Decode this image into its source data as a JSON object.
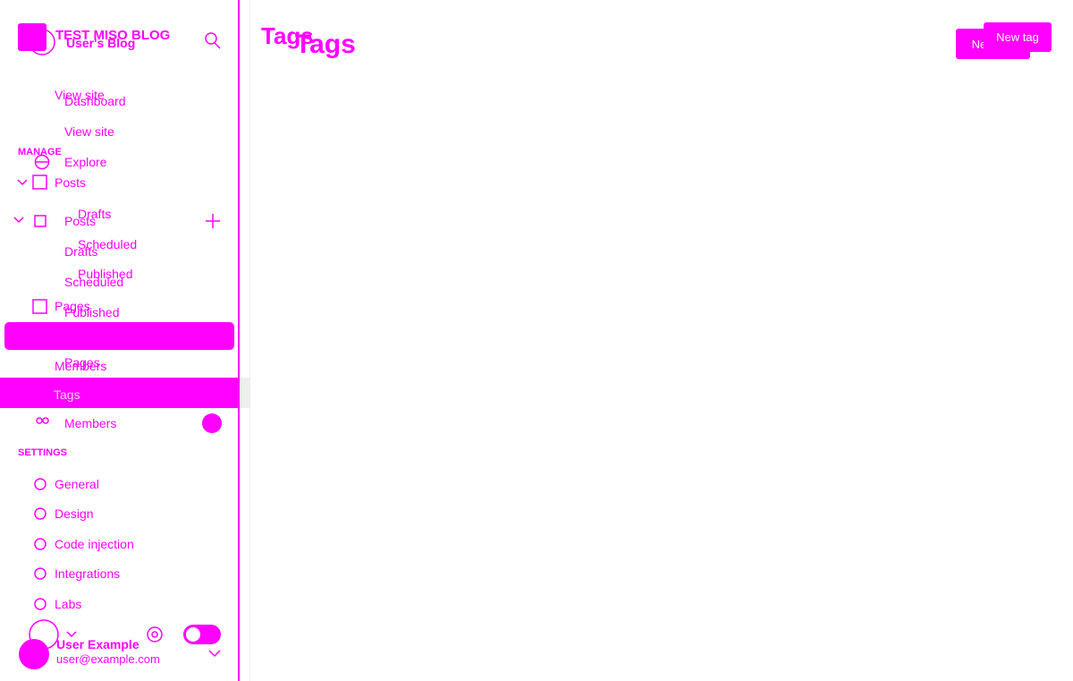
{
  "sidebar_a": {
    "blog_title": "TEST MISO BLOG",
    "view_site": "View site",
    "manage_heading": "MANAGE",
    "posts": "Posts",
    "drafts": "Drafts",
    "scheduled": "Scheduled",
    "published": "Published",
    "pages": "Pages",
    "members": "Members",
    "settings_heading": "SETTINGS",
    "settings": [
      "General",
      "Design",
      "Code injection",
      "Integrations",
      "Labs"
    ],
    "user_name": "User Example",
    "user_email": "user@example.com"
  },
  "sidebar_b": {
    "blog_title": "User's Blog",
    "dashboard": "Dashboard",
    "view_site": "View site",
    "explore": "Explore",
    "posts": "Posts",
    "drafts": "Drafts",
    "scheduled": "Scheduled",
    "published": "Published",
    "pages": "Pages",
    "tags": "Tags",
    "members": "Members"
  },
  "main_a": {
    "title": "Tags",
    "button": "New tag"
  },
  "main_b": {
    "title": "Tags",
    "button": "New tag"
  }
}
